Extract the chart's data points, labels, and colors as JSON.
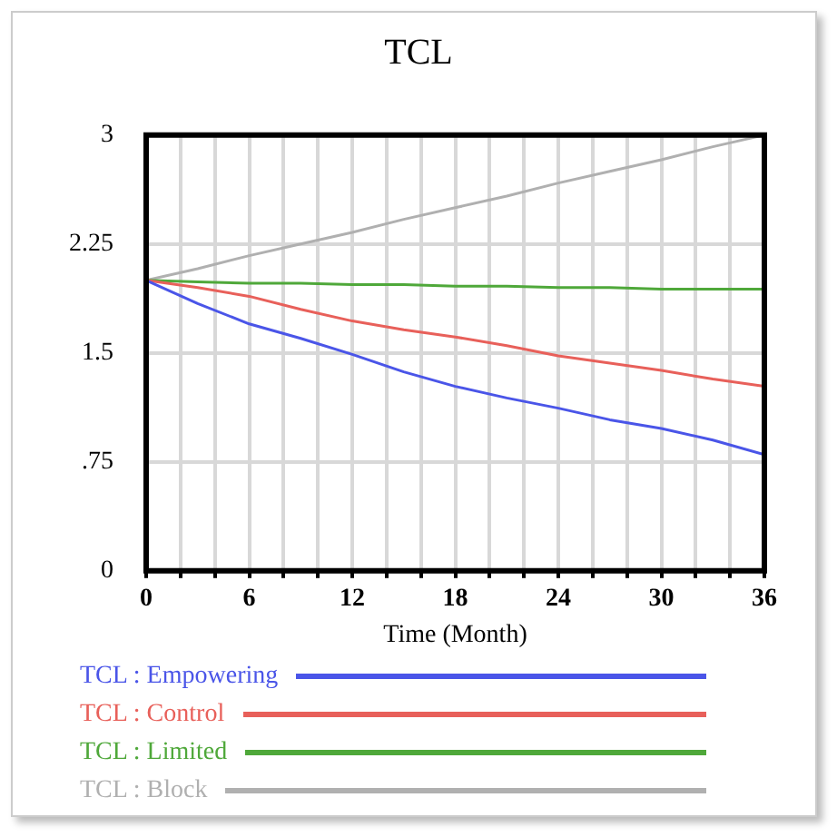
{
  "chart_data": {
    "type": "line",
    "title": "TCL",
    "xlabel": "Time (Month)",
    "x": [
      0,
      3,
      6,
      9,
      12,
      15,
      18,
      21,
      24,
      27,
      30,
      33,
      36
    ],
    "series": [
      {
        "name": "TCL : Empowering",
        "color": "#4a55e8",
        "values": [
          2.0,
          1.84,
          1.7,
          1.6,
          1.49,
          1.37,
          1.27,
          1.19,
          1.12,
          1.04,
          0.98,
          0.9,
          0.8
        ]
      },
      {
        "name": "TCL : Control",
        "color": "#e8605a",
        "values": [
          2.0,
          1.95,
          1.89,
          1.8,
          1.72,
          1.66,
          1.61,
          1.55,
          1.48,
          1.43,
          1.38,
          1.32,
          1.27
        ]
      },
      {
        "name": "TCL : Limited",
        "color": "#4fa83a",
        "values": [
          2.0,
          1.99,
          1.98,
          1.98,
          1.97,
          1.97,
          1.96,
          1.96,
          1.95,
          1.95,
          1.94,
          1.94,
          1.94
        ]
      },
      {
        "name": "TCL : Block",
        "color": "#b0b0b0",
        "values": [
          2.0,
          2.08,
          2.17,
          2.25,
          2.33,
          2.42,
          2.5,
          2.58,
          2.67,
          2.75,
          2.83,
          2.92,
          3.0
        ]
      }
    ],
    "xlim": [
      0,
      36
    ],
    "xticks": [
      0,
      {
        "value": 2,
        "label": null
      },
      {
        "value": 4,
        "label": null
      },
      6,
      {
        "value": 8,
        "label": null
      },
      {
        "value": 10,
        "label": null
      },
      12,
      {
        "value": 14,
        "label": null
      },
      {
        "value": 16,
        "label": null
      },
      18,
      {
        "value": 20,
        "label": null
      },
      {
        "value": 22,
        "label": null
      },
      24,
      {
        "value": 26,
        "label": null
      },
      {
        "value": 28,
        "label": null
      },
      30,
      {
        "value": 32,
        "label": null
      },
      {
        "value": 34,
        "label": null
      },
      36
    ],
    "ylim": [
      0,
      3
    ],
    "yticks": [
      0,
      {
        "value": 0.75,
        "label": ".75"
      },
      1.5,
      2.25,
      3
    ],
    "grid": true,
    "legend": "bottom",
    "marker": "none",
    "line_style": "solid"
  }
}
